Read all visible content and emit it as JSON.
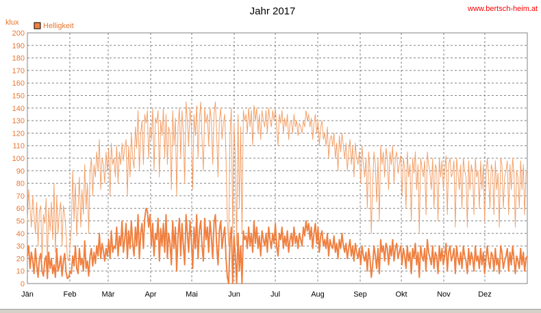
{
  "page": {
    "watermark": "www.bertsch-heim.at"
  },
  "chart_data": {
    "type": "line",
    "title": "Jahr 2017",
    "ylabel": "klux",
    "ylim": [
      0,
      200
    ],
    "yticks": [
      0,
      10,
      20,
      30,
      40,
      50,
      60,
      70,
      80,
      90,
      100,
      110,
      120,
      130,
      140,
      150,
      160,
      170,
      180,
      190,
      200
    ],
    "xlim": [
      0,
      365
    ],
    "xticks": [
      {
        "label": "Jän",
        "day": 0
      },
      {
        "label": "Feb",
        "day": 31
      },
      {
        "label": "Mär",
        "day": 59
      },
      {
        "label": "Apr",
        "day": 90
      },
      {
        "label": "Mai",
        "day": 120
      },
      {
        "label": "Jun",
        "day": 151
      },
      {
        "label": "Jul",
        "day": 181
      },
      {
        "label": "Aug",
        "day": 212
      },
      {
        "label": "Sep",
        "day": 243
      },
      {
        "label": "Okt",
        "day": 273
      },
      {
        "label": "Nov",
        "day": 304
      },
      {
        "label": "Dez",
        "day": 334
      }
    ],
    "grid": true,
    "legend": {
      "position": "top-left",
      "entries": [
        "Helligkeit"
      ]
    },
    "colors": {
      "series": "#f08040",
      "max_line": "#f4a068",
      "grid": "#808080",
      "text": "#e8752f"
    },
    "series": [
      {
        "name": "Helligkeit",
        "values": [
          22,
          30,
          12,
          25,
          18,
          8,
          28,
          15,
          5,
          20,
          24,
          10,
          6,
          18,
          22,
          4,
          25,
          12,
          20,
          8,
          15,
          5,
          28,
          10,
          14,
          22,
          6,
          18,
          24,
          9,
          4,
          5,
          10,
          8,
          22,
          14,
          30,
          12,
          8,
          28,
          15,
          20,
          10,
          34,
          12,
          18,
          6,
          22,
          28,
          14,
          25,
          16,
          30,
          22,
          40,
          20,
          32,
          26,
          18,
          28,
          22,
          35,
          20,
          42,
          25,
          30,
          28,
          45,
          22,
          38,
          30,
          50,
          25,
          35,
          48,
          20,
          42,
          28,
          50,
          32,
          22,
          45,
          30,
          55,
          20,
          40,
          48,
          28,
          52,
          60,
          58,
          45,
          55,
          30,
          48,
          22,
          40,
          35,
          52,
          18,
          44,
          30,
          48,
          25,
          55,
          20,
          40,
          32,
          15,
          50,
          28,
          45,
          10,
          38,
          52,
          22,
          48,
          30,
          15,
          55,
          40,
          25,
          50,
          35,
          12,
          45,
          28,
          55,
          20,
          42,
          50,
          30,
          18,
          52,
          35,
          45,
          25,
          50,
          38,
          20,
          48,
          55,
          30,
          15,
          42,
          50,
          28,
          38,
          45,
          20,
          5,
          0,
          35,
          45,
          0,
          38,
          22,
          0,
          40,
          10,
          30,
          0,
          42,
          35,
          38,
          28,
          45,
          30,
          40,
          25,
          50,
          32,
          45,
          28,
          38,
          22,
          42,
          35,
          30,
          40,
          25,
          45,
          35,
          28,
          40,
          32,
          48,
          30,
          22,
          40,
          35,
          45,
          28,
          38,
          30,
          42,
          25,
          35,
          40,
          30,
          45,
          32,
          38,
          28,
          40,
          35,
          30,
          45,
          38,
          50,
          42,
          48,
          35,
          45,
          28,
          40,
          48,
          32,
          45,
          25,
          38,
          42,
          30,
          35,
          28,
          40,
          22,
          35,
          30,
          28,
          38,
          25,
          32,
          20,
          35,
          28,
          40,
          30,
          25,
          32,
          20,
          28,
          35,
          22,
          30,
          18,
          32,
          25,
          20,
          28,
          15,
          30,
          22,
          18,
          25,
          10,
          28,
          20,
          5,
          15,
          30,
          22,
          12,
          28,
          8,
          35,
          25,
          30,
          18,
          32,
          28,
          15,
          30,
          22,
          35,
          18,
          28,
          32,
          20,
          25,
          30,
          15,
          28,
          22,
          12,
          30,
          18,
          25,
          8,
          28,
          20,
          32,
          15,
          25,
          5,
          30,
          22,
          18,
          28,
          10,
          35,
          25,
          20,
          15,
          30,
          12,
          25,
          22,
          8,
          30,
          18,
          28,
          15,
          22,
          32,
          10,
          25,
          30,
          18,
          22,
          28,
          8,
          30,
          20,
          15,
          25,
          12,
          30,
          22,
          18,
          8,
          28,
          15,
          25,
          20,
          10,
          30,
          18,
          22,
          12,
          28,
          15,
          25,
          8,
          20,
          30,
          18,
          12,
          25,
          22,
          10,
          28,
          15,
          20,
          8,
          30,
          25,
          12,
          18,
          22,
          28,
          10,
          25,
          15,
          30,
          20,
          8,
          22,
          18,
          12,
          28,
          15,
          25,
          10,
          20,
          22
        ]
      },
      {
        "name": "",
        "values": [
          50,
          75,
          60,
          45,
          70,
          55,
          40,
          65,
          30,
          58,
          62,
          20,
          55,
          48,
          68,
          15,
          60,
          42,
          65,
          35,
          80,
          25,
          70,
          40,
          58,
          65,
          30,
          62,
          55,
          40,
          20,
          18,
          30,
          45,
          90,
          50,
          80,
          38,
          60,
          85,
          45,
          75,
          55,
          95,
          60,
          80,
          40,
          90,
          100,
          70,
          95,
          85,
          105,
          90,
          115,
          75,
          100,
          95,
          80,
          105,
          90,
          108,
          70,
          112,
          95,
          100,
          85,
          110,
          80,
          105,
          95,
          112,
          98,
          108,
          115,
          70,
          110,
          85,
          120,
          100,
          92,
          125,
          108,
          138,
          90,
          120,
          130,
          95,
          135,
          128,
          138,
          100,
          125,
          115,
          140,
          90,
          132,
          128,
          138,
          85,
          130,
          118,
          140,
          100,
          135,
          95,
          125,
          120,
          75,
          138,
          110,
          132,
          70,
          125,
          140,
          100,
          138,
          120,
          80,
          145,
          130,
          110,
          140,
          125,
          75,
          135,
          118,
          142,
          100,
          130,
          145,
          115,
          90,
          140,
          128,
          135,
          110,
          140,
          130,
          95,
          135,
          145,
          120,
          85,
          130,
          140,
          115,
          128,
          135,
          100,
          50,
          30,
          120,
          140,
          40,
          128,
          100,
          30,
          135,
          60,
          125,
          40,
          138,
          130,
          135,
          120,
          140,
          125,
          138,
          110,
          142,
          130,
          140,
          120,
          135,
          115,
          138,
          130,
          125,
          138,
          120,
          140,
          130,
          125,
          138,
          130,
          140,
          125,
          110,
          135,
          128,
          138,
          120,
          132,
          125,
          135,
          115,
          128,
          130,
          120,
          135,
          125,
          130,
          118,
          128,
          125,
          120,
          130,
          125,
          138,
          130,
          135,
          125,
          132,
          115,
          128,
          135,
          120,
          130,
          110,
          125,
          130,
          115,
          120,
          110,
          125,
          100,
          115,
          118,
          110,
          120,
          100,
          112,
          90,
          118,
          105,
          120,
          110,
          100,
          112,
          90,
          105,
          115,
          95,
          110,
          85,
          112,
          100,
          95,
          105,
          80,
          110,
          95,
          85,
          100,
          60,
          105,
          90,
          40,
          80,
          105,
          95,
          65,
          100,
          50,
          110,
          95,
          105,
          85,
          108,
          100,
          75,
          105,
          95,
          110,
          80,
          100,
          105,
          88,
          95,
          102,
          70,
          100,
          92,
          60,
          105,
          85,
          95,
          50,
          100,
          88,
          105,
          75,
          95,
          40,
          100,
          92,
          85,
          98,
          55,
          105,
          95,
          88,
          75,
          100,
          60,
          95,
          92,
          50,
          100,
          85,
          98,
          75,
          90,
          102,
          55,
          95,
          100,
          85,
          88,
          98,
          45,
          100,
          88,
          75,
          95,
          60,
          100,
          90,
          85,
          45,
          98,
          75,
          95,
          88,
          55,
          100,
          85,
          90,
          60,
          98,
          75,
          95,
          50,
          88,
          100,
          85,
          60,
          95,
          90,
          55,
          98,
          75,
          88,
          45,
          100,
          95,
          60,
          85,
          90,
          98,
          55,
          95,
          75,
          100,
          88,
          45,
          90,
          85,
          60,
          98,
          75,
          95,
          55,
          88,
          90
        ]
      }
    ]
  }
}
